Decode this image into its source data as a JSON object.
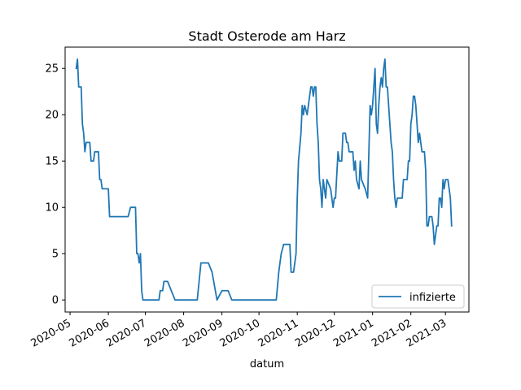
{
  "chart_data": {
    "type": "line",
    "title": "Stadt Osterode am Harz",
    "xlabel": "datum",
    "ylabel": "",
    "xlim": [
      "2020-04-27",
      "2021-03-20"
    ],
    "ylim": [
      -1.3,
      27.3
    ],
    "yticks": [
      0,
      5,
      10,
      15,
      20,
      25
    ],
    "xticks": [
      {
        "date": "2020-05-01",
        "label": "2020-05"
      },
      {
        "date": "2020-06-01",
        "label": "2020-06"
      },
      {
        "date": "2020-07-01",
        "label": "2020-07"
      },
      {
        "date": "2020-08-01",
        "label": "2020-08"
      },
      {
        "date": "2020-09-01",
        "label": "2020-09"
      },
      {
        "date": "2020-10-01",
        "label": "2020-10"
      },
      {
        "date": "2020-11-01",
        "label": "2020-11"
      },
      {
        "date": "2020-12-01",
        "label": "2020-12"
      },
      {
        "date": "2021-01-01",
        "label": "2021-01"
      },
      {
        "date": "2021-02-01",
        "label": "2021-02"
      },
      {
        "date": "2021-03-01",
        "label": "2021-03"
      }
    ],
    "legend": {
      "position": "lower right"
    },
    "series": [
      {
        "name": "infizierte",
        "color": "#1f77b4",
        "points": [
          [
            "2020-05-06",
            25
          ],
          [
            "2020-05-07",
            26
          ],
          [
            "2020-05-08",
            23
          ],
          [
            "2020-05-10",
            23
          ],
          [
            "2020-05-11",
            19
          ],
          [
            "2020-05-12",
            18
          ],
          [
            "2020-05-13",
            16
          ],
          [
            "2020-05-14",
            17
          ],
          [
            "2020-05-17",
            17
          ],
          [
            "2020-05-18",
            15
          ],
          [
            "2020-05-20",
            15
          ],
          [
            "2020-05-21",
            16
          ],
          [
            "2020-05-24",
            16
          ],
          [
            "2020-05-25",
            13
          ],
          [
            "2020-05-26",
            13
          ],
          [
            "2020-05-27",
            12
          ],
          [
            "2020-06-01",
            12
          ],
          [
            "2020-06-02",
            9
          ],
          [
            "2020-06-17",
            9
          ],
          [
            "2020-06-19",
            10
          ],
          [
            "2020-06-23",
            10
          ],
          [
            "2020-06-24",
            5
          ],
          [
            "2020-06-25",
            5
          ],
          [
            "2020-06-26",
            4
          ],
          [
            "2020-06-27",
            5
          ],
          [
            "2020-06-28",
            1
          ],
          [
            "2020-06-29",
            0
          ],
          [
            "2020-07-12",
            0
          ],
          [
            "2020-07-13",
            1
          ],
          [
            "2020-07-15",
            1
          ],
          [
            "2020-07-16",
            2
          ],
          [
            "2020-07-19",
            2
          ],
          [
            "2020-07-22",
            1
          ],
          [
            "2020-07-25",
            0
          ],
          [
            "2020-08-12",
            0
          ],
          [
            "2020-08-15",
            4
          ],
          [
            "2020-08-21",
            4
          ],
          [
            "2020-08-24",
            3
          ],
          [
            "2020-08-28",
            0
          ],
          [
            "2020-09-01",
            1
          ],
          [
            "2020-09-06",
            1
          ],
          [
            "2020-09-09",
            0
          ],
          [
            "2020-10-15",
            0
          ],
          [
            "2020-10-17",
            3
          ],
          [
            "2020-10-19",
            5
          ],
          [
            "2020-10-21",
            6
          ],
          [
            "2020-10-26",
            6
          ],
          [
            "2020-10-27",
            3
          ],
          [
            "2020-10-29",
            3
          ],
          [
            "2020-10-31",
            5
          ],
          [
            "2020-11-01",
            11
          ],
          [
            "2020-11-02",
            15
          ],
          [
            "2020-11-04",
            18
          ],
          [
            "2020-11-05",
            21
          ],
          [
            "2020-11-06",
            20
          ],
          [
            "2020-11-07",
            21
          ],
          [
            "2020-11-09",
            20
          ],
          [
            "2020-11-11",
            22
          ],
          [
            "2020-11-12",
            23
          ],
          [
            "2020-11-13",
            23
          ],
          [
            "2020-11-14",
            22
          ],
          [
            "2020-11-15",
            23
          ],
          [
            "2020-11-16",
            23
          ],
          [
            "2020-11-17",
            19
          ],
          [
            "2020-11-18",
            17
          ],
          [
            "2020-11-19",
            13
          ],
          [
            "2020-11-20",
            12
          ],
          [
            "2020-11-21",
            10
          ],
          [
            "2020-11-22",
            13
          ],
          [
            "2020-11-24",
            11
          ],
          [
            "2020-11-25",
            13
          ],
          [
            "2020-11-28",
            12
          ],
          [
            "2020-11-29",
            11
          ],
          [
            "2020-11-30",
            10
          ],
          [
            "2020-12-01",
            11
          ],
          [
            "2020-12-02",
            11
          ],
          [
            "2020-12-04",
            16
          ],
          [
            "2020-12-05",
            15
          ],
          [
            "2020-12-07",
            15
          ],
          [
            "2020-12-08",
            18
          ],
          [
            "2020-12-10",
            18
          ],
          [
            "2020-12-11",
            17
          ],
          [
            "2020-12-12",
            17
          ],
          [
            "2020-12-13",
            16
          ],
          [
            "2020-12-16",
            16
          ],
          [
            "2020-12-17",
            14
          ],
          [
            "2020-12-18",
            15
          ],
          [
            "2020-12-19",
            13
          ],
          [
            "2020-12-21",
            12
          ],
          [
            "2020-12-22",
            15
          ],
          [
            "2020-12-23",
            13
          ],
          [
            "2020-12-26",
            12
          ],
          [
            "2020-12-28",
            11
          ],
          [
            "2020-12-29",
            16
          ],
          [
            "2020-12-30",
            21
          ],
          [
            "2020-12-31",
            20
          ],
          [
            "2021-01-01",
            21
          ],
          [
            "2021-01-02",
            23
          ],
          [
            "2021-01-03",
            25
          ],
          [
            "2021-01-04",
            19
          ],
          [
            "2021-01-05",
            18
          ],
          [
            "2021-01-06",
            21
          ],
          [
            "2021-01-07",
            23
          ],
          [
            "2021-01-08",
            24
          ],
          [
            "2021-01-09",
            23
          ],
          [
            "2021-01-10",
            25
          ],
          [
            "2021-01-11",
            26
          ],
          [
            "2021-01-12",
            23
          ],
          [
            "2021-01-13",
            23
          ],
          [
            "2021-01-15",
            19
          ],
          [
            "2021-01-16",
            17
          ],
          [
            "2021-01-17",
            16
          ],
          [
            "2021-01-18",
            13
          ],
          [
            "2021-01-19",
            11
          ],
          [
            "2021-01-20",
            10
          ],
          [
            "2021-01-21",
            11
          ],
          [
            "2021-01-25",
            11
          ],
          [
            "2021-01-26",
            13
          ],
          [
            "2021-01-29",
            13
          ],
          [
            "2021-01-30",
            15
          ],
          [
            "2021-01-31",
            15
          ],
          [
            "2021-02-01",
            19
          ],
          [
            "2021-02-02",
            20
          ],
          [
            "2021-02-03",
            22
          ],
          [
            "2021-02-04",
            22
          ],
          [
            "2021-02-05",
            21
          ],
          [
            "2021-02-06",
            19
          ],
          [
            "2021-02-07",
            17
          ],
          [
            "2021-02-08",
            18
          ],
          [
            "2021-02-09",
            17
          ],
          [
            "2021-02-10",
            16
          ],
          [
            "2021-02-12",
            16
          ],
          [
            "2021-02-13",
            14
          ],
          [
            "2021-02-14",
            8
          ],
          [
            "2021-02-15",
            8
          ],
          [
            "2021-02-16",
            9
          ],
          [
            "2021-02-18",
            9
          ],
          [
            "2021-02-19",
            8
          ],
          [
            "2021-02-20",
            6
          ],
          [
            "2021-02-21",
            7
          ],
          [
            "2021-02-22",
            8
          ],
          [
            "2021-02-23",
            8
          ],
          [
            "2021-02-24",
            11
          ],
          [
            "2021-02-25",
            11
          ],
          [
            "2021-02-26",
            10
          ],
          [
            "2021-02-27",
            13
          ],
          [
            "2021-02-28",
            12
          ],
          [
            "2021-03-01",
            13
          ],
          [
            "2021-03-03",
            13
          ],
          [
            "2021-03-04",
            12
          ],
          [
            "2021-03-05",
            11
          ],
          [
            "2021-03-06",
            8
          ]
        ]
      }
    ]
  }
}
